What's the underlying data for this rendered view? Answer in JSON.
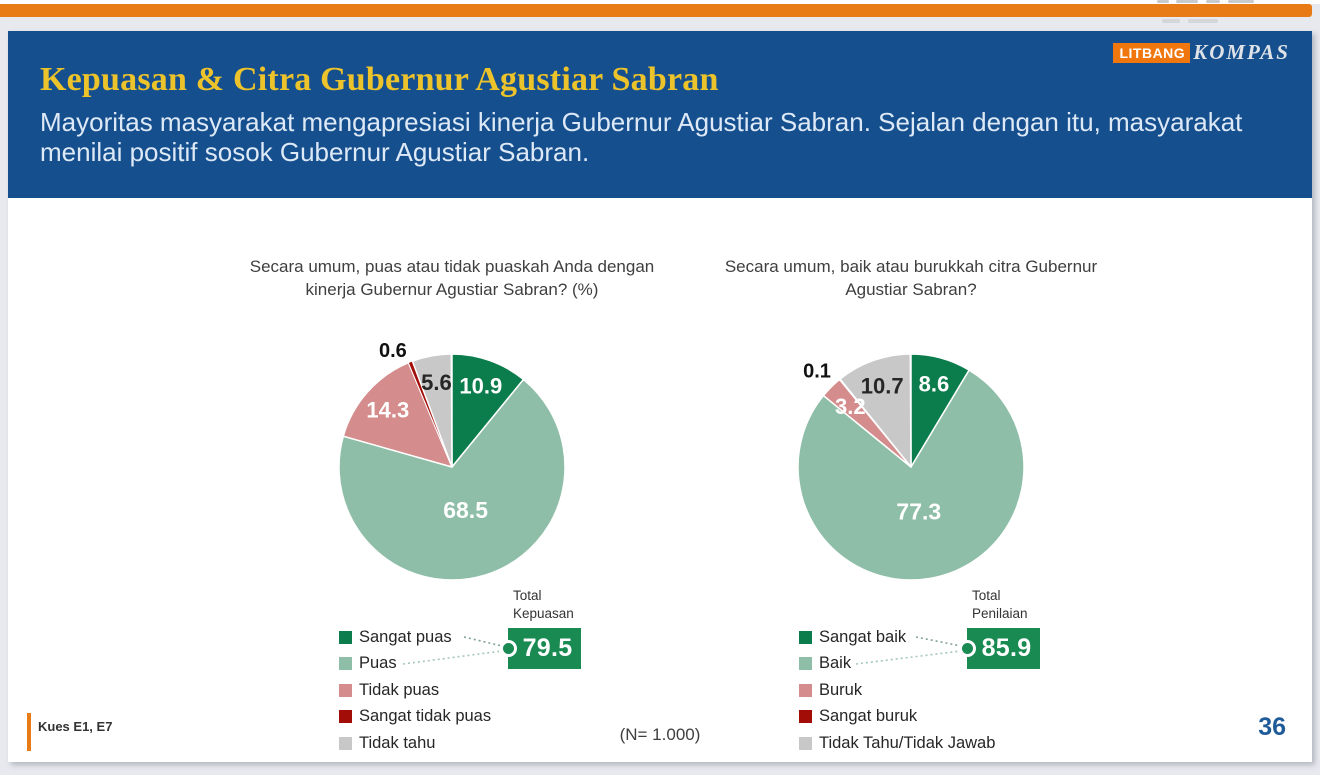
{
  "page": {
    "slide_number": "36",
    "footer_note": "Kues E1, E7",
    "sample_note": "(N= 1.000)"
  },
  "brand": {
    "litbang": "LITBANG",
    "kompas": "KOMPAS"
  },
  "header": {
    "title": "Kepuasan & Citra Gubernur Agustiar Sabran",
    "subtitle": "Mayoritas masyarakat mengapresiasi kinerja Gubernur Agustiar Sabran. Sejalan dengan itu, masyarakat menilai positif sosok Gubernur Agustiar Sabran."
  },
  "colors": {
    "header_blue": "#164f8d",
    "accent_orange": "#e87b16",
    "total_green": "#1a8a53",
    "title_gold": "#edc32b",
    "page_number_blue": "#1e5b98"
  },
  "chart_data": [
    {
      "type": "pie",
      "title": "Secara umum, puas atau tidak puaskah Anda dengan kinerja Gubernur Agustiar Sabran? (%)",
      "slices": [
        {
          "label": "Sangat puas",
          "value": 10.9,
          "color": "#0b7c4b",
          "label_color": "#ffffff"
        },
        {
          "label": "Puas",
          "value": 68.5,
          "color": "#8ebea7",
          "label_color": "#ffffff"
        },
        {
          "label": "Tidak puas",
          "value": 14.3,
          "color": "#d48c8c",
          "label_color": "#ffffff"
        },
        {
          "label": "Sangat tidak puas",
          "value": 0.6,
          "color": "#a30d08",
          "label_color": "#111111"
        },
        {
          "label": "Tidak tahu",
          "value": 5.6,
          "color": "#c8c8c8",
          "label_color": "#262626"
        }
      ],
      "total": {
        "label_lines": [
          "Total",
          "Kepuasan"
        ],
        "value": "79.5"
      }
    },
    {
      "type": "pie",
      "title": "Secara umum, baik atau burukkah citra Gubernur Agustiar Sabran?",
      "slices": [
        {
          "label": "Sangat baik",
          "value": 8.6,
          "color": "#0b7c4b",
          "label_color": "#ffffff"
        },
        {
          "label": "Baik",
          "value": 77.3,
          "color": "#8ebea7",
          "label_color": "#ffffff"
        },
        {
          "label": "Buruk",
          "value": 3.2,
          "color": "#d48c8c",
          "label_color": "#ffffff"
        },
        {
          "label": "Sangat buruk",
          "value": 0.1,
          "color": "#a30d08",
          "label_color": "#111111"
        },
        {
          "label": "Tidak Tahu/Tidak Jawab",
          "value": 10.7,
          "color": "#c8c8c8",
          "label_color": "#262626"
        }
      ],
      "total": {
        "label_lines": [
          "Total",
          "Penilaian"
        ],
        "value": "85.9"
      }
    }
  ]
}
